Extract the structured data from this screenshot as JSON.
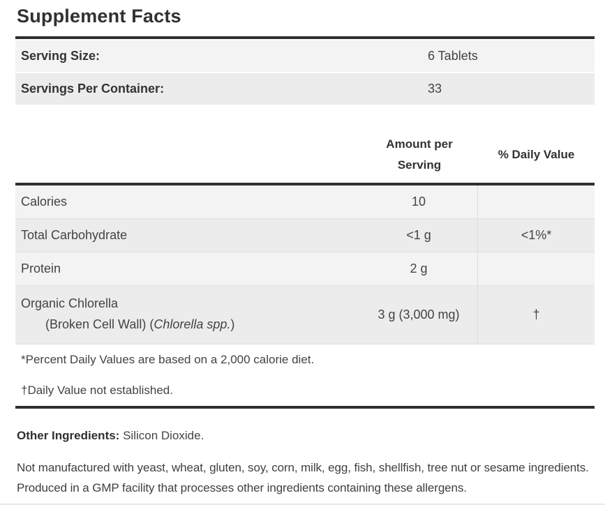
{
  "title": "Supplement Facts",
  "serving_info": {
    "rows": [
      {
        "label": "Serving Size:",
        "value": "6 Tablets"
      },
      {
        "label": "Servings Per Container:",
        "value": "33"
      }
    ]
  },
  "nutrition_table": {
    "headers": {
      "amount": "Amount per Serving",
      "daily_value": "% Daily Value"
    },
    "rows": [
      {
        "name": "Calories",
        "amount": "10",
        "daily_value": ""
      },
      {
        "name": "Total Carbohydrate",
        "amount": "<1 g",
        "daily_value": "<1%*"
      },
      {
        "name": "Protein",
        "amount": "2 g",
        "daily_value": ""
      },
      {
        "name": "Organic Chlorella",
        "sub_prefix": "(Broken Cell Wall) (",
        "sub_italic": "Chlorella spp.",
        "sub_suffix": ")",
        "amount": "3 g (3,000 mg)",
        "daily_value": "†"
      }
    ],
    "footnotes": [
      "*Percent Daily Values are based on a 2,000 calorie diet.",
      "†Daily Value not established."
    ]
  },
  "other_ingredients": {
    "label": "Other Ingredients:",
    "value": " Silicon Dioxide."
  },
  "allergen_statement": "Not manufactured with yeast, wheat, gluten, soy, corn, milk, egg, fish, shellfish, tree nut or sesame ingredients. Produced in a GMP facility that processes other ingredients containing these allergens.",
  "colors": {
    "rule_dark": "#2f2f2f",
    "row_bg_light": "#f3f3f3",
    "row_bg_dark": "#ececec",
    "text_dark": "#333333",
    "divider_light": "#dcdcdc"
  }
}
